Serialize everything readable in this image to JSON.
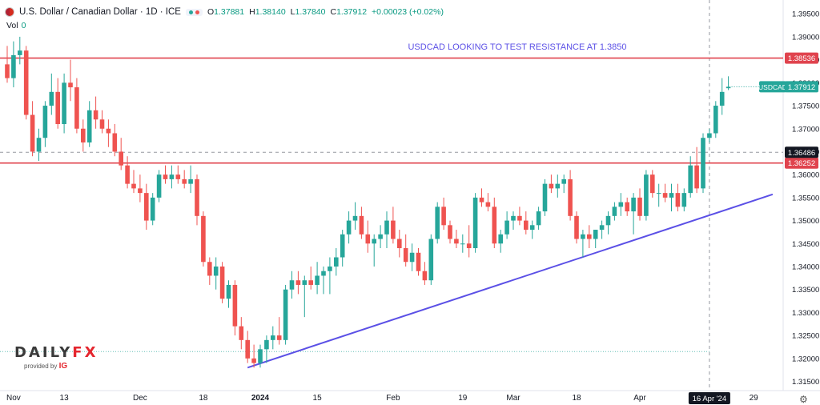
{
  "header": {
    "symbol": "U.S. Dollar / Canadian Dollar · 1D · ICE",
    "ohlc": [
      {
        "label": "O",
        "value": "1.37881"
      },
      {
        "label": "H",
        "value": "1.38140"
      },
      {
        "label": "L",
        "value": "1.37840"
      },
      {
        "label": "C",
        "value": "1.37912"
      }
    ],
    "change": "+0.00023 (+0.02%)",
    "vol_label": "Vol",
    "vol_value": "0"
  },
  "annotation": "USDCAD LOOKING TO TEST RESISTANCE AT 1.3850",
  "brand": {
    "logo_left": "DAILY",
    "logo_right": "FX",
    "provided_by": "provided by",
    "ig": "IG"
  },
  "colors": {
    "up": "#26a69a",
    "down": "#ef5350",
    "resistance": "#e0434e",
    "trendline": "#5b50e6",
    "annotation": "#5b50e6",
    "price_label": "#26a69a"
  },
  "chart_data": {
    "type": "candlestick",
    "title": "",
    "ylim": [
      1.313,
      1.398
    ],
    "y_ticks": [
      "1.31500",
      "1.32000",
      "1.32500",
      "1.33000",
      "1.33500",
      "1.34000",
      "1.34500",
      "1.35000",
      "1.35500",
      "1.36000",
      "1.36500",
      "1.37000",
      "1.37500",
      "1.38000",
      "1.38500",
      "1.39000",
      "1.39500"
    ],
    "x_ticks": [
      {
        "label": "Nov",
        "i": 1
      },
      {
        "label": "13",
        "i": 9
      },
      {
        "label": "Dec",
        "i": 21
      },
      {
        "label": "18",
        "i": 31
      },
      {
        "label": "2024",
        "i": 40
      },
      {
        "label": "15",
        "i": 49
      },
      {
        "label": "Feb",
        "i": 61
      },
      {
        "label": "19",
        "i": 72
      },
      {
        "label": "Mar",
        "i": 80
      },
      {
        "label": "18",
        "i": 90
      },
      {
        "label": "Apr",
        "i": 100
      },
      {
        "label": "29",
        "i": 118
      }
    ],
    "x_cursor_label": "16 Apr '24",
    "x_cursor_index": 111,
    "candles": [
      [
        1.384,
        1.388,
        1.38,
        1.381
      ],
      [
        1.381,
        1.389,
        1.379,
        1.386
      ],
      [
        1.386,
        1.39,
        1.384,
        1.387
      ],
      [
        1.387,
        1.388,
        1.372,
        1.373
      ],
      [
        1.373,
        1.376,
        1.364,
        1.365
      ],
      [
        1.365,
        1.37,
        1.363,
        1.368
      ],
      [
        1.368,
        1.376,
        1.366,
        1.375
      ],
      [
        1.375,
        1.382,
        1.373,
        1.378
      ],
      [
        1.378,
        1.381,
        1.37,
        1.371
      ],
      [
        1.371,
        1.382,
        1.369,
        1.38
      ],
      [
        1.38,
        1.385,
        1.376,
        1.379
      ],
      [
        1.379,
        1.381,
        1.369,
        1.37
      ],
      [
        1.37,
        1.372,
        1.365,
        1.367
      ],
      [
        1.367,
        1.376,
        1.366,
        1.374
      ],
      [
        1.374,
        1.377,
        1.37,
        1.372
      ],
      [
        1.372,
        1.374,
        1.369,
        1.37
      ],
      [
        1.37,
        1.372,
        1.366,
        1.369
      ],
      [
        1.369,
        1.371,
        1.364,
        1.365
      ],
      [
        1.365,
        1.368,
        1.361,
        1.362
      ],
      [
        1.362,
        1.364,
        1.357,
        1.358
      ],
      [
        1.358,
        1.361,
        1.356,
        1.357
      ],
      [
        1.357,
        1.36,
        1.354,
        1.356
      ],
      [
        1.356,
        1.358,
        1.348,
        1.35
      ],
      [
        1.35,
        1.356,
        1.349,
        1.355
      ],
      [
        1.355,
        1.361,
        1.354,
        1.36
      ],
      [
        1.36,
        1.362,
        1.358,
        1.359
      ],
      [
        1.359,
        1.362,
        1.357,
        1.36
      ],
      [
        1.36,
        1.362,
        1.358,
        1.359
      ],
      [
        1.359,
        1.361,
        1.357,
        1.358
      ],
      [
        1.358,
        1.362,
        1.356,
        1.359
      ],
      [
        1.359,
        1.36,
        1.349,
        1.351
      ],
      [
        1.351,
        1.352,
        1.34,
        1.341
      ],
      [
        1.341,
        1.342,
        1.336,
        1.338
      ],
      [
        1.338,
        1.342,
        1.335,
        1.34
      ],
      [
        1.34,
        1.341,
        1.332,
        1.333
      ],
      [
        1.333,
        1.337,
        1.331,
        1.336
      ],
      [
        1.336,
        1.337,
        1.325,
        1.327
      ],
      [
        1.327,
        1.329,
        1.322,
        1.324
      ],
      [
        1.324,
        1.326,
        1.319,
        1.32
      ],
      [
        1.32,
        1.323,
        1.318,
        1.319
      ],
      [
        1.319,
        1.323,
        1.318,
        1.322
      ],
      [
        1.322,
        1.325,
        1.319,
        1.324
      ],
      [
        1.324,
        1.327,
        1.322,
        1.325
      ],
      [
        1.325,
        1.329,
        1.323,
        1.324
      ],
      [
        1.324,
        1.336,
        1.323,
        1.335
      ],
      [
        1.335,
        1.339,
        1.333,
        1.337
      ],
      [
        1.337,
        1.339,
        1.334,
        1.336
      ],
      [
        1.336,
        1.338,
        1.329,
        1.337
      ],
      [
        1.337,
        1.34,
        1.335,
        1.336
      ],
      [
        1.336,
        1.341,
        1.334,
        1.338
      ],
      [
        1.338,
        1.34,
        1.334,
        1.339
      ],
      [
        1.339,
        1.342,
        1.334,
        1.34
      ],
      [
        1.34,
        1.344,
        1.338,
        1.342
      ],
      [
        1.342,
        1.348,
        1.34,
        1.347
      ],
      [
        1.347,
        1.352,
        1.345,
        1.35
      ],
      [
        1.35,
        1.354,
        1.348,
        1.351
      ],
      [
        1.351,
        1.353,
        1.346,
        1.347
      ],
      [
        1.347,
        1.35,
        1.343,
        1.345
      ],
      [
        1.345,
        1.347,
        1.34,
        1.346
      ],
      [
        1.346,
        1.349,
        1.344,
        1.347
      ],
      [
        1.347,
        1.352,
        1.344,
        1.35
      ],
      [
        1.35,
        1.353,
        1.345,
        1.346
      ],
      [
        1.346,
        1.348,
        1.342,
        1.344
      ],
      [
        1.344,
        1.347,
        1.34,
        1.341
      ],
      [
        1.341,
        1.345,
        1.339,
        1.343
      ],
      [
        1.343,
        1.344,
        1.338,
        1.339
      ],
      [
        1.339,
        1.341,
        1.336,
        1.337
      ],
      [
        1.337,
        1.347,
        1.336,
        1.346
      ],
      [
        1.346,
        1.354,
        1.345,
        1.353
      ],
      [
        1.353,
        1.355,
        1.348,
        1.349
      ],
      [
        1.349,
        1.35,
        1.345,
        1.346
      ],
      [
        1.346,
        1.348,
        1.344,
        1.345
      ],
      [
        1.345,
        1.347,
        1.343,
        1.345
      ],
      [
        1.345,
        1.349,
        1.342,
        1.344
      ],
      [
        1.344,
        1.356,
        1.343,
        1.355
      ],
      [
        1.355,
        1.357,
        1.353,
        1.354
      ],
      [
        1.354,
        1.356,
        1.352,
        1.353
      ],
      [
        1.353,
        1.355,
        1.344,
        1.345
      ],
      [
        1.345,
        1.348,
        1.343,
        1.347
      ],
      [
        1.347,
        1.352,
        1.346,
        1.35
      ],
      [
        1.35,
        1.352,
        1.348,
        1.351
      ],
      [
        1.351,
        1.353,
        1.349,
        1.35
      ],
      [
        1.35,
        1.352,
        1.347,
        1.348
      ],
      [
        1.348,
        1.35,
        1.346,
        1.349
      ],
      [
        1.349,
        1.353,
        1.348,
        1.352
      ],
      [
        1.352,
        1.359,
        1.351,
        1.358
      ],
      [
        1.358,
        1.36,
        1.356,
        1.357
      ],
      [
        1.357,
        1.36,
        1.355,
        1.358
      ],
      [
        1.358,
        1.36,
        1.356,
        1.359
      ],
      [
        1.359,
        1.361,
        1.35,
        1.351
      ],
      [
        1.351,
        1.352,
        1.345,
        1.346
      ],
      [
        1.346,
        1.348,
        1.342,
        1.347
      ],
      [
        1.347,
        1.349,
        1.344,
        1.346
      ],
      [
        1.346,
        1.348,
        1.344,
        1.348
      ],
      [
        1.348,
        1.35,
        1.346,
        1.349
      ],
      [
        1.349,
        1.352,
        1.347,
        1.351
      ],
      [
        1.351,
        1.354,
        1.35,
        1.353
      ],
      [
        1.353,
        1.356,
        1.351,
        1.354
      ],
      [
        1.354,
        1.355,
        1.351,
        1.352
      ],
      [
        1.352,
        1.356,
        1.347,
        1.355
      ],
      [
        1.355,
        1.357,
        1.35,
        1.351
      ],
      [
        1.351,
        1.361,
        1.35,
        1.36
      ],
      [
        1.36,
        1.361,
        1.355,
        1.356
      ],
      [
        1.356,
        1.358,
        1.353,
        1.356
      ],
      [
        1.356,
        1.358,
        1.354,
        1.355
      ],
      [
        1.355,
        1.358,
        1.352,
        1.356
      ],
      [
        1.356,
        1.358,
        1.352,
        1.353
      ],
      [
        1.353,
        1.357,
        1.352,
        1.356
      ],
      [
        1.356,
        1.364,
        1.355,
        1.362
      ],
      [
        1.362,
        1.366,
        1.356,
        1.357
      ],
      [
        1.357,
        1.369,
        1.356,
        1.368
      ],
      [
        1.368,
        1.37,
        1.367,
        1.369
      ],
      [
        1.369,
        1.376,
        1.368,
        1.375
      ],
      [
        1.375,
        1.381,
        1.373,
        1.378
      ],
      [
        1.37881,
        1.3814,
        1.3784,
        1.37912
      ]
    ],
    "levels": [
      {
        "label": "1.38536",
        "value": 1.38536
      },
      {
        "label": "1.36252",
        "value": 1.36252
      }
    ],
    "current_price": {
      "label": "USDCAD",
      "value_label": "1.37912",
      "value": 1.37912
    },
    "crosshair_price": {
      "label": "1.36486",
      "value": 1.36486
    },
    "dotted_line": 1.3215,
    "trendline": [
      {
        "i": 38,
        "y": 1.318
      },
      {
        "i": 121,
        "y": 1.3557
      }
    ]
  }
}
